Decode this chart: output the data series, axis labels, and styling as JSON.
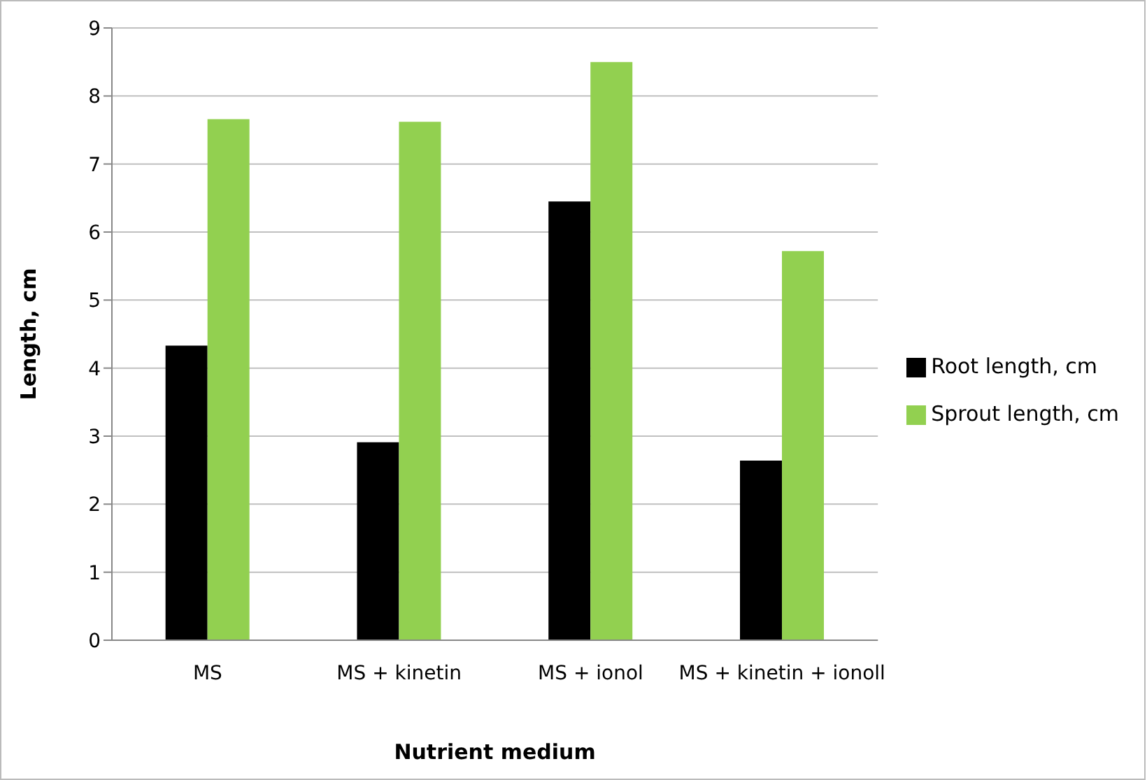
{
  "chart_data": {
    "type": "bar",
    "xlabel": "Nutrient medium",
    "ylabel": "Length, cm",
    "categories": [
      "MS",
      "MS + kinetin",
      "MS + ionol",
      "MS + kinetin + ionoll"
    ],
    "series": [
      {
        "name": "Root length, cm",
        "color": "#000000",
        "values": [
          4.33,
          2.91,
          6.45,
          2.64
        ]
      },
      {
        "name": "Sprout length, cm",
        "color": "#92d050",
        "values": [
          7.66,
          7.62,
          8.5,
          5.72
        ]
      }
    ],
    "ylim": [
      0,
      9
    ],
    "yticks": [
      0,
      1,
      2,
      3,
      4,
      5,
      6,
      7,
      8,
      9
    ],
    "grid": "y",
    "legend": "right"
  }
}
